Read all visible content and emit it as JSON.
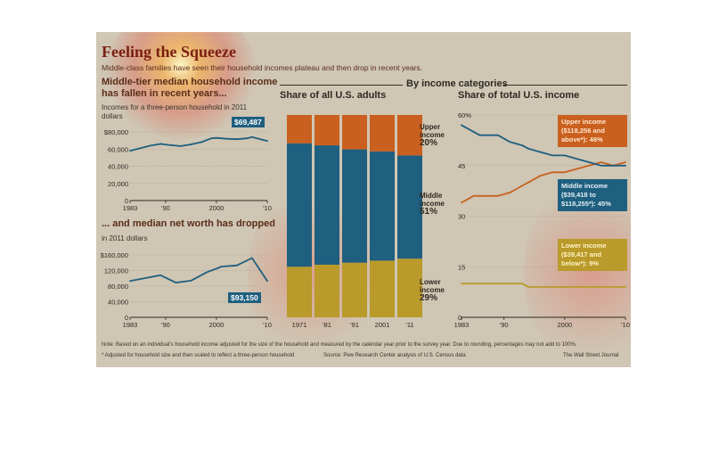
{
  "title": "Feeling the Squeeze",
  "subtitle": "Middle-class families have seen their household incomes plateau and then drop in recent years.",
  "left_top": {
    "heading_line1": "Middle-tier median household income",
    "heading_line2": "has fallen in recent years...",
    "unit_line1": "Incomes for a three-person household in 2011",
    "unit_line2": "dollars",
    "callout": "$69,487"
  },
  "left_bottom": {
    "heading": "... and median net worth has dropped",
    "unit": "in 2011 dollars",
    "callout": "$93,150"
  },
  "middle": {
    "section_label": "By income categories",
    "heading": "Share of all U.S. adults",
    "upper_label": "Upper income",
    "upper_value": "20%",
    "middle_label": "Middle income",
    "middle_value": "51%",
    "lower_label": "Lower income",
    "lower_value": "29%"
  },
  "right": {
    "heading": "Share of total U.S. income",
    "upper_callout": "Upper income ($118,256 and above*): 46%",
    "middle_callout": "Middle income ($39,418 to $118,255*): 45%",
    "lower_callout": "Lower income ($39,417 and below*): 9%"
  },
  "footer": {
    "note": "Note: Based on an individual's household income adjusted for the size of the household and measured by the calendar year prior to the survey year. Due to rounding, percentages may not add to 100%.",
    "footnote": "* Adjusted for household size and then scaled to reflect a three-person household",
    "source": "Source: Pew Research Center analysis of U.S. Census data",
    "credit": "The Wall Street Journal"
  },
  "colors": {
    "upper": "#c9601f",
    "middle": "#1f5f7f",
    "lower": "#b99a2a",
    "panel": "#cfc6b4"
  },
  "chart_data": [
    {
      "id": "median-income",
      "type": "line",
      "title": "Middle-tier median household income has fallen in recent years...",
      "ylabel": "Incomes for a three-person household in 2011 dollars",
      "x_ticks": [
        "1983",
        "'90",
        "2000",
        "'10"
      ],
      "x_tick_values": [
        1983,
        1990,
        2000,
        2010
      ],
      "y_ticks": [
        "$80,000",
        "60,000",
        "40,000",
        "20,000",
        "0"
      ],
      "y_tick_values": [
        80000,
        60000,
        40000,
        20000,
        0
      ],
      "xlim": [
        1983,
        2010
      ],
      "ylim": [
        0,
        80000
      ],
      "x": [
        1983,
        1985,
        1987,
        1989,
        1991,
        1993,
        1995,
        1997,
        1999,
        2000,
        2002,
        2004,
        2006,
        2007,
        2008,
        2009,
        2010
      ],
      "values": [
        58000,
        61000,
        64000,
        66000,
        64500,
        63500,
        65500,
        68000,
        72500,
        73000,
        72000,
        71500,
        72500,
        74000,
        72500,
        71000,
        69487
      ]
    },
    {
      "id": "net-worth",
      "type": "line",
      "title": "... and median net worth has dropped",
      "ylabel": "in 2011 dollars",
      "x_ticks": [
        "1983",
        "'90",
        "2000",
        "'10"
      ],
      "x_tick_values": [
        1983,
        1990,
        2000,
        2010
      ],
      "y_ticks": [
        "$160,000",
        "120,000",
        "80,000",
        "40,000",
        "0"
      ],
      "y_tick_values": [
        160000,
        120000,
        80000,
        40000,
        0
      ],
      "xlim": [
        1983,
        2010
      ],
      "ylim": [
        0,
        160000
      ],
      "x": [
        1983,
        1989,
        1992,
        1995,
        1998,
        2001,
        2004,
        2007,
        2010
      ],
      "values": [
        93000,
        108000,
        89000,
        94000,
        115000,
        130000,
        133000,
        152000,
        93150
      ]
    },
    {
      "id": "share-adults",
      "type": "bar",
      "stacked": true,
      "title": "Share of all U.S. adults",
      "categories": [
        "1971",
        "'81",
        "'91",
        "2001",
        "'11"
      ],
      "ylim": [
        0,
        100
      ],
      "series": [
        {
          "name": "Lower income",
          "values": [
            25,
            26,
            27,
            28,
            29
          ]
        },
        {
          "name": "Middle income",
          "values": [
            61,
            59,
            56,
            54,
            51
          ]
        },
        {
          "name": "Upper income",
          "values": [
            14,
            15,
            17,
            18,
            20
          ]
        }
      ]
    },
    {
      "id": "share-income",
      "type": "line",
      "title": "Share of total U.S. income",
      "x_ticks": [
        "1983",
        "'90",
        "2000",
        "'10"
      ],
      "x_tick_values": [
        1983,
        1990,
        2000,
        2010
      ],
      "y_ticks": [
        "60%",
        "45",
        "30",
        "15",
        "0"
      ],
      "y_tick_values": [
        60,
        45,
        30,
        15,
        0
      ],
      "xlim": [
        1983,
        2010
      ],
      "ylim": [
        0,
        60
      ],
      "series": [
        {
          "name": "Upper income",
          "x": [
            1983,
            1985,
            1986,
            1989,
            1991,
            1993,
            1994,
            1996,
            1998,
            2000,
            2002,
            2004,
            2006,
            2008,
            2010
          ],
          "values": [
            34,
            36,
            36,
            36,
            37,
            39,
            40,
            42,
            43,
            43,
            44,
            45,
            46,
            45,
            46
          ]
        },
        {
          "name": "Middle income",
          "x": [
            1983,
            1985,
            1986,
            1989,
            1991,
            1993,
            1994,
            1996,
            1998,
            2000,
            2002,
            2004,
            2006,
            2008,
            2010
          ],
          "values": [
            57,
            55,
            54,
            54,
            52,
            51,
            50,
            49,
            48,
            48,
            47,
            46,
            45,
            45,
            45
          ]
        },
        {
          "name": "Lower income",
          "x": [
            1983,
            1985,
            1990,
            1993,
            1994,
            2000,
            2005,
            2010
          ],
          "values": [
            10,
            10,
            10,
            10,
            9,
            9,
            9,
            9
          ]
        }
      ]
    }
  ]
}
